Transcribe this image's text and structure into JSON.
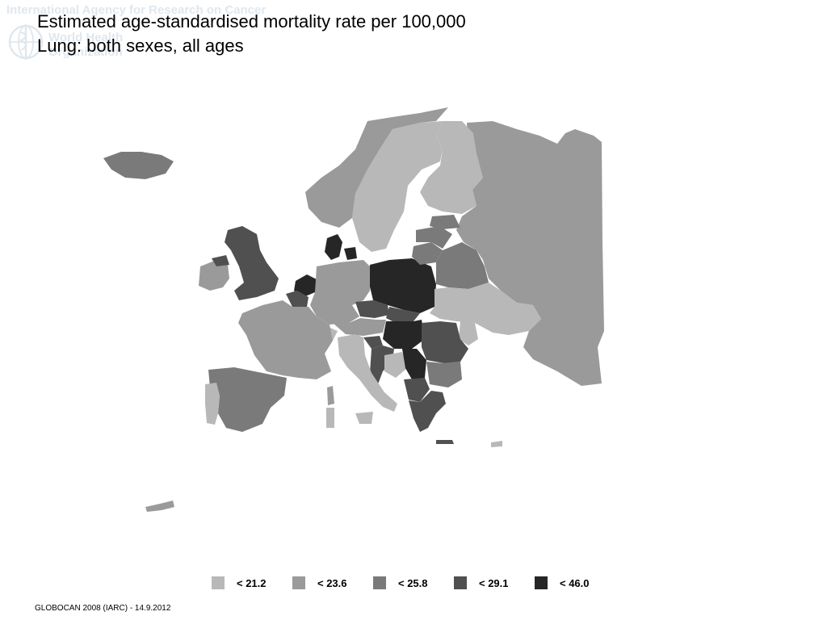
{
  "watermark": {
    "agency": "International Agency for Research on Cancer",
    "org_line1": "World Health",
    "org_line2": "Organization"
  },
  "title": {
    "line1": "Estimated age-standardised mortality rate per 100,000",
    "line2": "Lung: both sexes, all ages"
  },
  "legend": {
    "items": [
      {
        "label": "< 21.2",
        "color": "#b8b8b8"
      },
      {
        "label": "< 23.6",
        "color": "#9a9a9a"
      },
      {
        "label": "< 25.8",
        "color": "#7a7a7a"
      },
      {
        "label": "< 29.1",
        "color": "#505050"
      },
      {
        "label": "< 46.0",
        "color": "#262626"
      }
    ]
  },
  "map": {
    "classes": {
      "c1": "#b8b8b8",
      "c2": "#9a9a9a",
      "c3": "#7a7a7a",
      "c4": "#505050",
      "c5": "#262626"
    }
  },
  "footer": {
    "source": "GLOBOCAN 2008 (IARC) - 14.9.2012"
  }
}
